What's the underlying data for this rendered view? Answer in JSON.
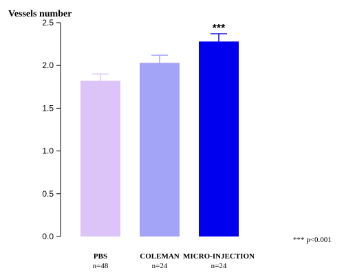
{
  "chart_data": {
    "type": "bar",
    "ylabel": "Vessels number",
    "ylim": [
      0,
      2.5
    ],
    "yticks": [
      "0.0",
      "0.5",
      "1.0",
      "1.5",
      "2.0",
      "2.5"
    ],
    "categories": [
      "PBS",
      "COLEMAN",
      "MICRO-INJECTION"
    ],
    "sample_sizes": [
      "n=48",
      "n=24",
      "n=24"
    ],
    "values": [
      1.82,
      2.03,
      2.28
    ],
    "errors": [
      0.08,
      0.09,
      0.09
    ],
    "colors": [
      "#dcc4f8",
      "#a3a3f7",
      "#0000ee"
    ],
    "significance": [
      "",
      "",
      "***"
    ],
    "footnote": "*** p<0.001",
    "grid": false
  }
}
